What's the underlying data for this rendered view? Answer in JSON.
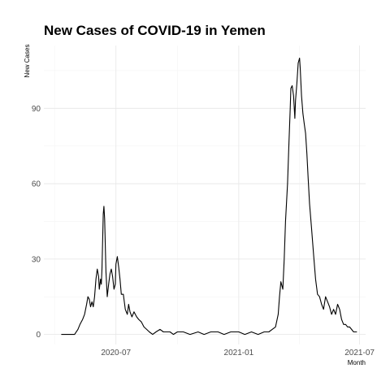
{
  "chart_data": {
    "type": "line",
    "title": "New Cases of COVID-19 in Yemen",
    "xlabel": "Month",
    "ylabel": "New Cases",
    "grid": true,
    "legend": "none",
    "xlim": [
      "2020-03-15",
      "2021-07-10"
    ],
    "ylim": [
      -4,
      115
    ],
    "x_ticks": [
      {
        "value": "2020-07-01",
        "label": "2020-07"
      },
      {
        "value": "2021-01-01",
        "label": "2021-01"
      },
      {
        "value": "2021-07-01",
        "label": "2021-07"
      }
    ],
    "y_ticks": [
      {
        "value": 0,
        "label": "0"
      },
      {
        "value": 30,
        "label": "30"
      },
      {
        "value": 60,
        "label": "60"
      },
      {
        "value": 90,
        "label": "90"
      }
    ],
    "series": [
      {
        "color": "#000000",
        "x": [
          "2020-04-10",
          "2020-04-20",
          "2020-04-30",
          "2020-05-05",
          "2020-05-08",
          "2020-05-12",
          "2020-05-15",
          "2020-05-18",
          "2020-05-20",
          "2020-05-22",
          "2020-05-24",
          "2020-05-26",
          "2020-05-28",
          "2020-05-30",
          "2020-06-01",
          "2020-06-03",
          "2020-06-05",
          "2020-06-06",
          "2020-06-08",
          "2020-06-09",
          "2020-06-10",
          "2020-06-12",
          "2020-06-13",
          "2020-06-14",
          "2020-06-16",
          "2020-06-18",
          "2020-06-20",
          "2020-06-22",
          "2020-06-24",
          "2020-06-26",
          "2020-06-28",
          "2020-06-30",
          "2020-07-01",
          "2020-07-03",
          "2020-07-05",
          "2020-07-07",
          "2020-07-09",
          "2020-07-12",
          "2020-07-15",
          "2020-07-18",
          "2020-07-20",
          "2020-07-22",
          "2020-07-25",
          "2020-07-28",
          "2020-08-01",
          "2020-08-04",
          "2020-08-08",
          "2020-08-12",
          "2020-08-16",
          "2020-08-20",
          "2020-08-25",
          "2020-08-30",
          "2020-09-05",
          "2020-09-10",
          "2020-09-15",
          "2020-09-20",
          "2020-09-25",
          "2020-10-01",
          "2020-10-10",
          "2020-10-20",
          "2020-11-01",
          "2020-11-10",
          "2020-11-20",
          "2020-12-01",
          "2020-12-10",
          "2020-12-20",
          "2021-01-01",
          "2021-01-10",
          "2021-01-20",
          "2021-01-30",
          "2021-02-08",
          "2021-02-15",
          "2021-02-20",
          "2021-02-25",
          "2021-03-01",
          "2021-03-03",
          "2021-03-05",
          "2021-03-08",
          "2021-03-10",
          "2021-03-12",
          "2021-03-15",
          "2021-03-17",
          "2021-03-19",
          "2021-03-20",
          "2021-03-22",
          "2021-03-24",
          "2021-03-26",
          "2021-03-27",
          "2021-03-29",
          "2021-03-31",
          "2021-04-02",
          "2021-04-03",
          "2021-04-05",
          "2021-04-07",
          "2021-04-09",
          "2021-04-11",
          "2021-04-13",
          "2021-04-15",
          "2021-04-17",
          "2021-04-20",
          "2021-04-23",
          "2021-04-26",
          "2021-04-29",
          "2021-05-02",
          "2021-05-05",
          "2021-05-08",
          "2021-05-11",
          "2021-05-14",
          "2021-05-17",
          "2021-05-20",
          "2021-05-23",
          "2021-05-26",
          "2021-05-29",
          "2021-06-01",
          "2021-06-04",
          "2021-06-07",
          "2021-06-10",
          "2021-06-13",
          "2021-06-16",
          "2021-06-19",
          "2021-06-22",
          "2021-06-25",
          "2021-06-27"
        ],
        "y": [
          0,
          0,
          0,
          2,
          4,
          6,
          8,
          12,
          15,
          14,
          11,
          13,
          11,
          15,
          22,
          26,
          23,
          18,
          22,
          20,
          26,
          48,
          51,
          46,
          25,
          15,
          20,
          24,
          26,
          23,
          18,
          20,
          28,
          31,
          27,
          22,
          16,
          16,
          10,
          8,
          12,
          9,
          7,
          9,
          7,
          6,
          5,
          3,
          2,
          1,
          0,
          1,
          2,
          1,
          1,
          1,
          0,
          1,
          1,
          0,
          1,
          0,
          1,
          1,
          0,
          1,
          1,
          0,
          1,
          0,
          1,
          1,
          2,
          3,
          8,
          15,
          21,
          18,
          30,
          45,
          60,
          75,
          90,
          98,
          99,
          95,
          86,
          93,
          100,
          108,
          110,
          106,
          95,
          88,
          84,
          80,
          72,
          62,
          52,
          42,
          32,
          22,
          16,
          15,
          12,
          10,
          15,
          13,
          11,
          8,
          10,
          8,
          12,
          10,
          6,
          4,
          4,
          3,
          3,
          2,
          1,
          1,
          1
        ]
      }
    ]
  }
}
